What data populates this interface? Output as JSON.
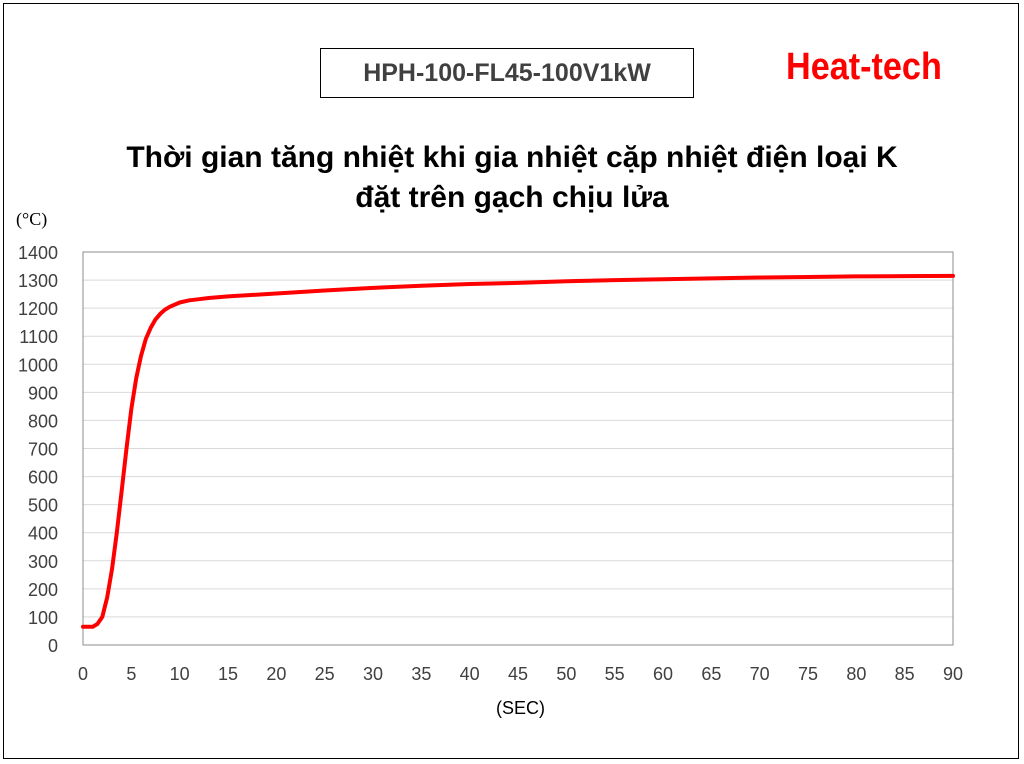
{
  "header": {
    "model": "HPH-100-FL45-100V1kW",
    "brand": "Heat-tech"
  },
  "chart_data": {
    "type": "line",
    "title_line1": "Thời gian tăng nhiệt khi gia nhiệt cặp nhiệt điện loại K",
    "title_line2": "đặt trên gạch chịu lửa",
    "ylabel": "(°C)",
    "xlabel": "(SEC)",
    "xlim": [
      0,
      90
    ],
    "ylim": [
      0,
      1400
    ],
    "x_ticks": [
      0,
      5,
      10,
      15,
      20,
      25,
      30,
      35,
      40,
      45,
      50,
      55,
      60,
      65,
      70,
      75,
      80,
      85,
      90
    ],
    "y_ticks": [
      0,
      100,
      200,
      300,
      400,
      500,
      600,
      700,
      800,
      900,
      1000,
      1100,
      1200,
      1300,
      1400
    ],
    "grid": true,
    "line_color": "#ff0000",
    "series": [
      {
        "x": [
          0,
          1,
          1.5,
          2,
          2.5,
          3,
          3.5,
          4,
          4.5,
          5,
          5.5,
          6,
          6.5,
          7,
          7.5,
          8,
          8.5,
          9,
          10,
          11,
          12,
          13,
          15,
          20,
          25,
          30,
          35,
          40,
          45,
          50,
          55,
          60,
          65,
          70,
          75,
          80,
          85,
          90
        ],
        "y": [
          65,
          65,
          75,
          100,
          170,
          270,
          400,
          550,
          700,
          840,
          950,
          1030,
          1090,
          1130,
          1160,
          1180,
          1195,
          1205,
          1220,
          1228,
          1232,
          1236,
          1242,
          1252,
          1263,
          1272,
          1280,
          1286,
          1290,
          1296,
          1300,
          1303,
          1306,
          1309,
          1311,
          1313,
          1314,
          1315
        ]
      }
    ]
  }
}
